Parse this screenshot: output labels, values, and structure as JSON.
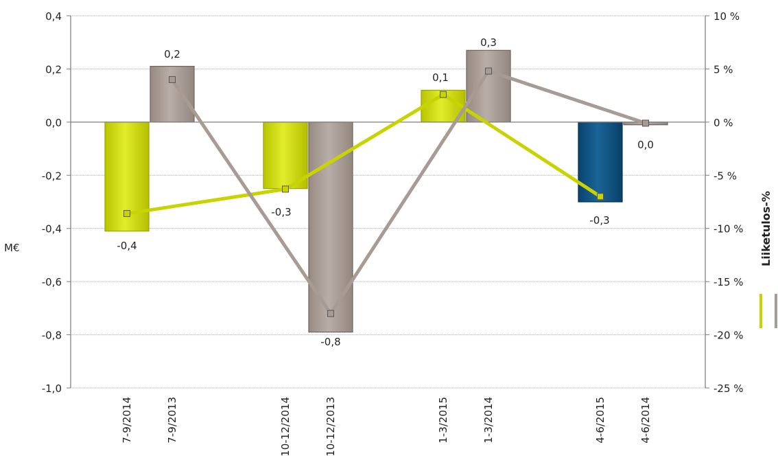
{
  "chart_data": {
    "type": "bar",
    "categories": [
      "7-9/2014",
      "7-9/2013",
      "10-12/2014",
      "10-12/2013",
      "1-3/2015",
      "1-3/2014",
      "4-6/2015",
      "4-6/2014"
    ],
    "values": [
      -0.41,
      0.21,
      -0.25,
      -0.79,
      0.12,
      0.27,
      -0.3,
      -0.01
    ],
    "value_labels": [
      "-0,4",
      "0,2",
      "-0,3",
      "-0,8",
      "0,1",
      "0,3",
      "-0,3",
      "0,0"
    ],
    "bar_colors": [
      "#c8d400",
      "#a79b93",
      "#c8d400",
      "#a79b93",
      "#c8d400",
      "#a79b93",
      "#0d4e7a",
      "#a79b93"
    ],
    "ylabel": "M€",
    "ylim": [
      -1.0,
      0.4
    ],
    "yticks": [
      "0,4",
      "0,2",
      "0,0",
      "-0,2",
      "-0,4",
      "-0,6",
      "-0,8",
      "-1,0"
    ],
    "y2label": "Liiketulos-%",
    "y2lim": [
      -25,
      10
    ],
    "y2ticks": [
      "10 %",
      "5 %",
      "0 %",
      "-5 %",
      "-10 %",
      "-15 %",
      "-20 %",
      "-25 %"
    ],
    "grid": true,
    "series": [
      {
        "color": "#c8d400",
        "x": [
          "7-9/2014",
          "10-12/2014",
          "1-3/2015",
          "4-6/2015"
        ],
        "values": [
          -8.6,
          -6.3,
          2.6,
          -7.0
        ]
      },
      {
        "color": "#a79b93",
        "x": [
          "7-9/2013",
          "10-12/2013",
          "1-3/2014",
          "4-6/2014"
        ],
        "values": [
          4.0,
          -18.0,
          4.8,
          -0.1
        ]
      }
    ]
  }
}
